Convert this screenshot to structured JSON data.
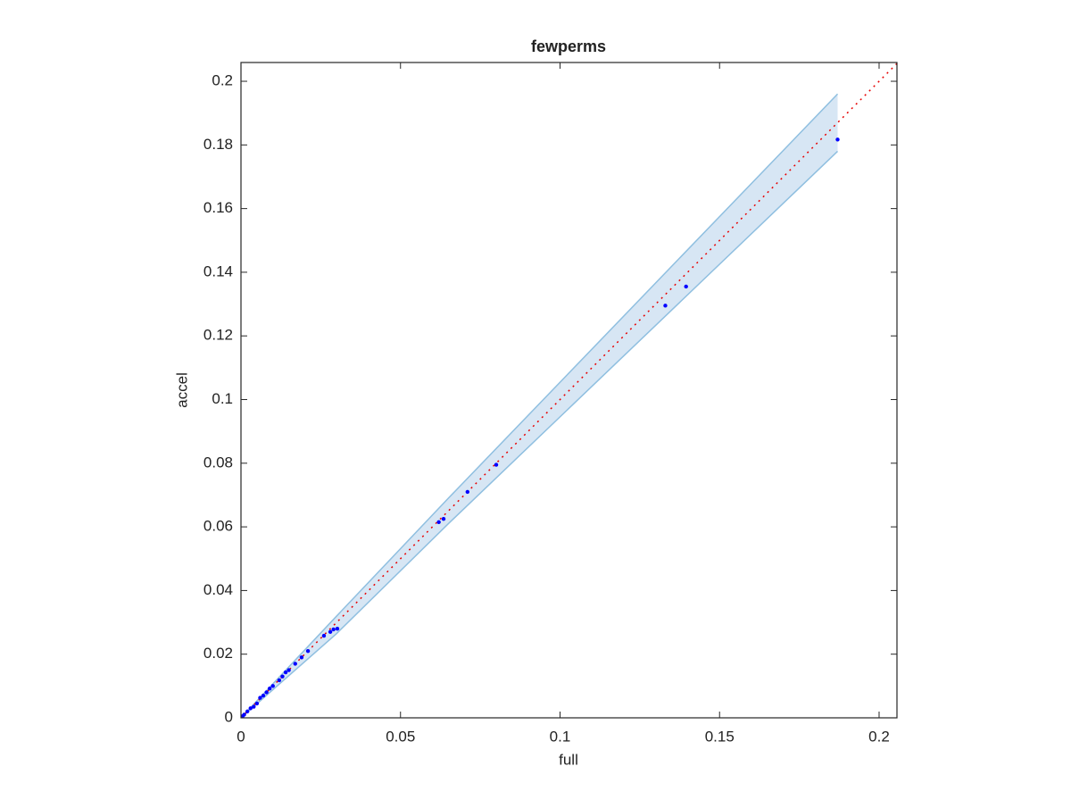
{
  "chart_data": {
    "type": "scatter",
    "title": "fewperms",
    "xlabel": "full",
    "ylabel": "accel",
    "xlim": [
      0,
      0.2056
    ],
    "ylim": [
      0,
      0.2059
    ],
    "xticks": [
      0,
      0.05,
      0.1,
      0.15,
      0.2
    ],
    "yticks": [
      0,
      0.02,
      0.04,
      0.06,
      0.08,
      0.1,
      0.12,
      0.14,
      0.16,
      0.18,
      0.2
    ],
    "band": {
      "color": "#a6c8e6",
      "edge_color": "#8fbfe0",
      "x": [
        0,
        0.03,
        0.065,
        0.187
      ],
      "upper": [
        0,
        0.032,
        0.069,
        0.196
      ],
      "lower": [
        0,
        0.0265,
        0.061,
        0.178
      ]
    },
    "reference_line": {
      "color": "#e60000",
      "x": [
        0,
        0.2056
      ],
      "values": [
        0,
        0.2056
      ]
    },
    "series": [
      {
        "color": "#0000ff",
        "x": [
          0.187,
          0.1395,
          0.133,
          0.08,
          0.071,
          0.0635,
          0.062,
          0.0302,
          0.029,
          0.028,
          0.026,
          0.021,
          0.019,
          0.017,
          0.015,
          0.014,
          0.013,
          0.012,
          0.01,
          0.009,
          0.008,
          0.007,
          0.006,
          0.005,
          0.004,
          0.003,
          0.002,
          0.001,
          0.0005
        ],
        "values": [
          0.1817,
          0.1355,
          0.1295,
          0.0795,
          0.071,
          0.0625,
          0.0615,
          0.028,
          0.0278,
          0.027,
          0.0258,
          0.021,
          0.019,
          0.017,
          0.015,
          0.0143,
          0.013,
          0.0118,
          0.01,
          0.0092,
          0.008,
          0.007,
          0.0063,
          0.0045,
          0.0035,
          0.003,
          0.002,
          0.001,
          0.0005
        ]
      }
    ]
  }
}
